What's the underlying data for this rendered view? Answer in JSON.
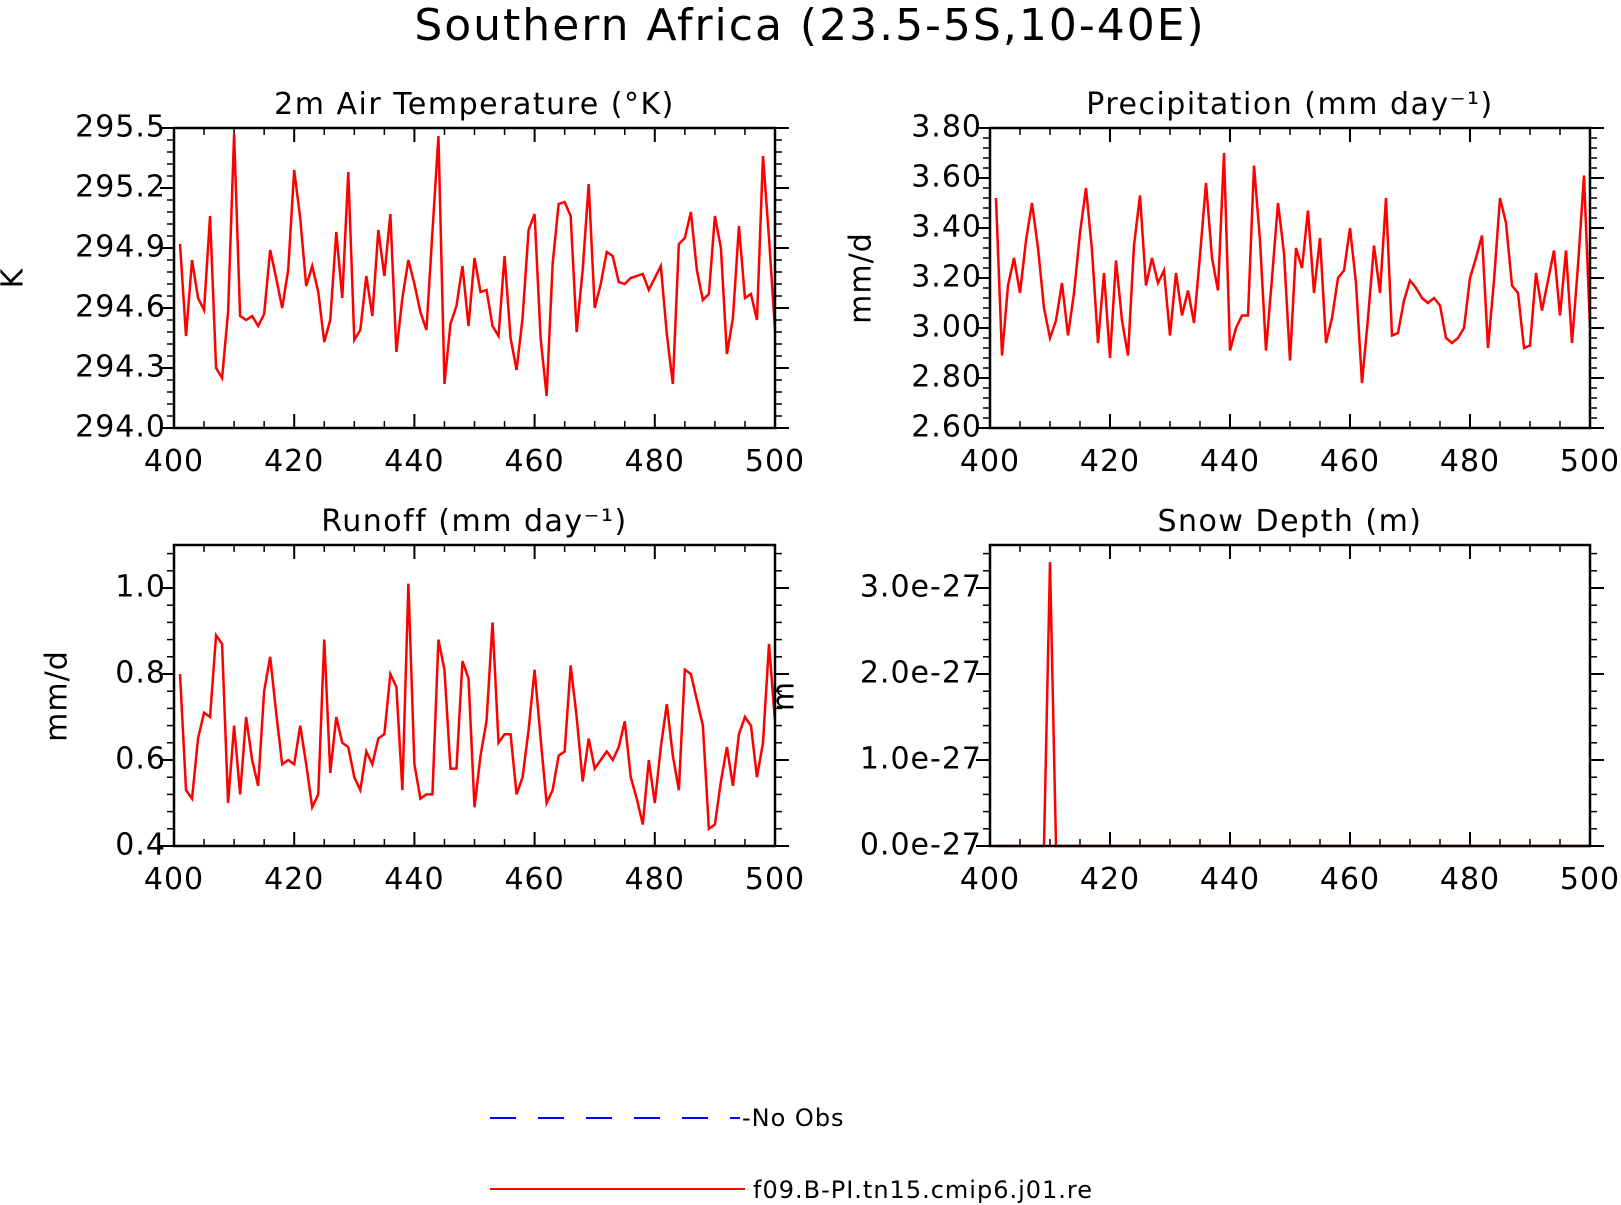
{
  "figure": {
    "title": "Southern Africa (23.5-5S,10-40E)",
    "legend": [
      {
        "label": "-No Obs",
        "color": "#0000ff",
        "style": "dashed"
      },
      {
        "label": "f09.B-PI.tn15.cmip6.j01.re",
        "color": "#ff0000",
        "style": "solid"
      }
    ]
  },
  "chart_data": [
    {
      "type": "line",
      "title": "2m Air Temperature (°K)",
      "ylabel": "K",
      "xlim": [
        400,
        500
      ],
      "ylim": [
        294.0,
        295.5
      ],
      "x_ticks": [
        400,
        420,
        440,
        460,
        480,
        500
      ],
      "x_tick_labels": [
        "400",
        "420",
        "440",
        "460",
        "480",
        "500"
      ],
      "y_ticks": [
        294.0,
        294.3,
        294.6,
        294.9,
        295.2,
        295.5
      ],
      "y_tick_labels": [
        "294.0",
        "294.3",
        "294.6",
        "294.9",
        "295.2",
        "295.5"
      ],
      "x_start": 401,
      "series": [
        {
          "name": "f09.B-PI.tn15.cmip6.j01.re",
          "color": "#ff0000",
          "values": [
            294.92,
            294.46,
            294.84,
            294.65,
            294.59,
            295.06,
            294.3,
            294.25,
            294.58,
            295.47,
            294.56,
            294.54,
            294.56,
            294.51,
            294.57,
            294.89,
            294.75,
            294.6,
            294.79,
            295.29,
            295.05,
            294.71,
            294.81,
            294.68,
            294.43,
            294.54,
            294.98,
            294.65,
            295.28,
            294.44,
            294.49,
            294.76,
            294.56,
            294.99,
            294.76,
            295.07,
            294.38,
            294.65,
            294.84,
            294.72,
            294.58,
            294.49,
            294.98,
            295.46,
            294.22,
            294.52,
            294.61,
            294.81,
            294.51,
            294.85,
            294.68,
            294.69,
            294.51,
            294.46,
            294.86,
            294.45,
            294.29,
            294.55,
            294.99,
            295.07,
            294.45,
            294.16,
            294.82,
            295.12,
            295.13,
            295.06,
            294.48,
            294.79,
            295.22,
            294.6,
            294.72,
            294.88,
            294.86,
            294.73,
            294.72,
            294.75,
            294.76,
            294.77,
            294.69,
            294.75,
            294.81,
            294.47,
            294.22,
            294.92,
            294.95,
            295.08,
            294.79,
            294.64,
            294.67,
            295.06,
            294.9,
            294.37,
            294.55,
            295.01,
            294.65,
            294.67,
            294.54,
            295.36,
            294.95,
            294.49
          ]
        }
      ]
    },
    {
      "type": "line",
      "title": "Precipitation (mm day⁻¹)",
      "ylabel": "mm/d",
      "xlim": [
        400,
        500
      ],
      "ylim": [
        2.6,
        3.8
      ],
      "x_ticks": [
        400,
        420,
        440,
        460,
        480,
        500
      ],
      "x_tick_labels": [
        "400",
        "420",
        "440",
        "460",
        "480",
        "500"
      ],
      "y_ticks": [
        2.6,
        2.8,
        3.0,
        3.2,
        3.4,
        3.6,
        3.8
      ],
      "y_tick_labels": [
        "2.60",
        "2.80",
        "3.00",
        "3.20",
        "3.40",
        "3.60",
        "3.80"
      ],
      "x_start": 401,
      "series": [
        {
          "name": "f09.B-PI.tn15.cmip6.j01.re",
          "color": "#ff0000",
          "values": [
            3.52,
            2.89,
            3.17,
            3.28,
            3.14,
            3.35,
            3.5,
            3.32,
            3.08,
            2.96,
            3.03,
            3.18,
            2.97,
            3.14,
            3.38,
            3.56,
            3.31,
            2.94,
            3.22,
            2.88,
            3.27,
            3.03,
            2.89,
            3.33,
            3.53,
            3.17,
            3.28,
            3.18,
            3.23,
            2.97,
            3.22,
            3.05,
            3.15,
            3.02,
            3.29,
            3.58,
            3.28,
            3.15,
            3.7,
            2.91,
            3.0,
            3.05,
            3.05,
            3.65,
            3.35,
            2.91,
            3.2,
            3.5,
            3.3,
            2.87,
            3.32,
            3.24,
            3.47,
            3.14,
            3.36,
            2.94,
            3.04,
            3.2,
            3.23,
            3.4,
            3.18,
            2.78,
            3.04,
            3.33,
            3.14,
            3.52,
            2.97,
            2.98,
            3.11,
            3.19,
            3.16,
            3.12,
            3.1,
            3.12,
            3.09,
            2.96,
            2.94,
            2.96,
            3.0,
            3.2,
            3.28,
            3.37,
            2.92,
            3.19,
            3.52,
            3.42,
            3.17,
            3.14,
            2.92,
            2.93,
            3.22,
            3.07,
            3.19,
            3.31,
            3.05,
            3.31,
            2.94,
            3.25,
            3.61,
            3.0
          ]
        }
      ]
    },
    {
      "type": "line",
      "title": "Runoff (mm day⁻¹)",
      "ylabel": "mm/d",
      "xlim": [
        400,
        500
      ],
      "ylim": [
        0.4,
        1.1
      ],
      "x_ticks": [
        400,
        420,
        440,
        460,
        480,
        500
      ],
      "x_tick_labels": [
        "400",
        "420",
        "440",
        "460",
        "480",
        "500"
      ],
      "y_ticks": [
        0.4,
        0.6,
        0.8,
        1.0
      ],
      "y_tick_labels": [
        "0.4",
        "0.6",
        "0.8",
        "1.0"
      ],
      "x_start": 401,
      "series": [
        {
          "name": "f09.B-PI.tn15.cmip6.j01.re",
          "color": "#ff0000",
          "values": [
            0.8,
            0.53,
            0.51,
            0.65,
            0.71,
            0.7,
            0.89,
            0.87,
            0.5,
            0.68,
            0.52,
            0.7,
            0.6,
            0.54,
            0.76,
            0.84,
            0.71,
            0.59,
            0.6,
            0.59,
            0.68,
            0.59,
            0.49,
            0.52,
            0.88,
            0.57,
            0.7,
            0.64,
            0.63,
            0.56,
            0.53,
            0.62,
            0.59,
            0.65,
            0.66,
            0.8,
            0.77,
            0.53,
            1.01,
            0.59,
            0.51,
            0.52,
            0.52,
            0.88,
            0.81,
            0.58,
            0.58,
            0.83,
            0.79,
            0.49,
            0.61,
            0.69,
            0.92,
            0.64,
            0.66,
            0.66,
            0.52,
            0.56,
            0.67,
            0.81,
            0.65,
            0.5,
            0.53,
            0.61,
            0.62,
            0.82,
            0.7,
            0.55,
            0.65,
            0.58,
            0.6,
            0.62,
            0.6,
            0.63,
            0.69,
            0.56,
            0.51,
            0.45,
            0.6,
            0.5,
            0.63,
            0.73,
            0.61,
            0.53,
            0.81,
            0.8,
            0.74,
            0.68,
            0.44,
            0.45,
            0.55,
            0.63,
            0.54,
            0.66,
            0.7,
            0.68,
            0.56,
            0.64,
            0.87,
            0.69
          ]
        }
      ]
    },
    {
      "type": "line",
      "title": "Snow Depth (m)",
      "ylabel": "m",
      "xlim": [
        400,
        500
      ],
      "ylim": [
        0,
        3.5e-27
      ],
      "x_ticks": [
        400,
        420,
        440,
        460,
        480,
        500
      ],
      "x_tick_labels": [
        "400",
        "420",
        "440",
        "460",
        "480",
        "500"
      ],
      "y_ticks": [
        0,
        1e-27,
        2e-27,
        3e-27
      ],
      "y_tick_labels": [
        "0.0e-27",
        "1.0e-27",
        "2.0e-27",
        "3.0e-27"
      ],
      "x_start": 401,
      "series": [
        {
          "name": "f09.B-PI.tn15.cmip6.j01.re",
          "color": "#ff0000",
          "values": [
            0,
            0,
            0,
            0,
            0,
            0,
            0,
            0,
            0,
            3.3e-27,
            0,
            0,
            0,
            0,
            0,
            0,
            0,
            0,
            0,
            0,
            0,
            0,
            0,
            0,
            0,
            0,
            0,
            0,
            0,
            0,
            0,
            0,
            0,
            0,
            0,
            0,
            0,
            0,
            0,
            0,
            0,
            0,
            0,
            0,
            0,
            0,
            0,
            0,
            0,
            0,
            0,
            0,
            0,
            0,
            0,
            0,
            0,
            0,
            0,
            0,
            0,
            0,
            0,
            0,
            0,
            0,
            0,
            0,
            0,
            0,
            0,
            0,
            0,
            0,
            0,
            0,
            0,
            0,
            0,
            0,
            0,
            0,
            0,
            0,
            0,
            0,
            0,
            0,
            0,
            0,
            0,
            0,
            0,
            0,
            0,
            0,
            0,
            0,
            0,
            0
          ]
        }
      ]
    }
  ]
}
